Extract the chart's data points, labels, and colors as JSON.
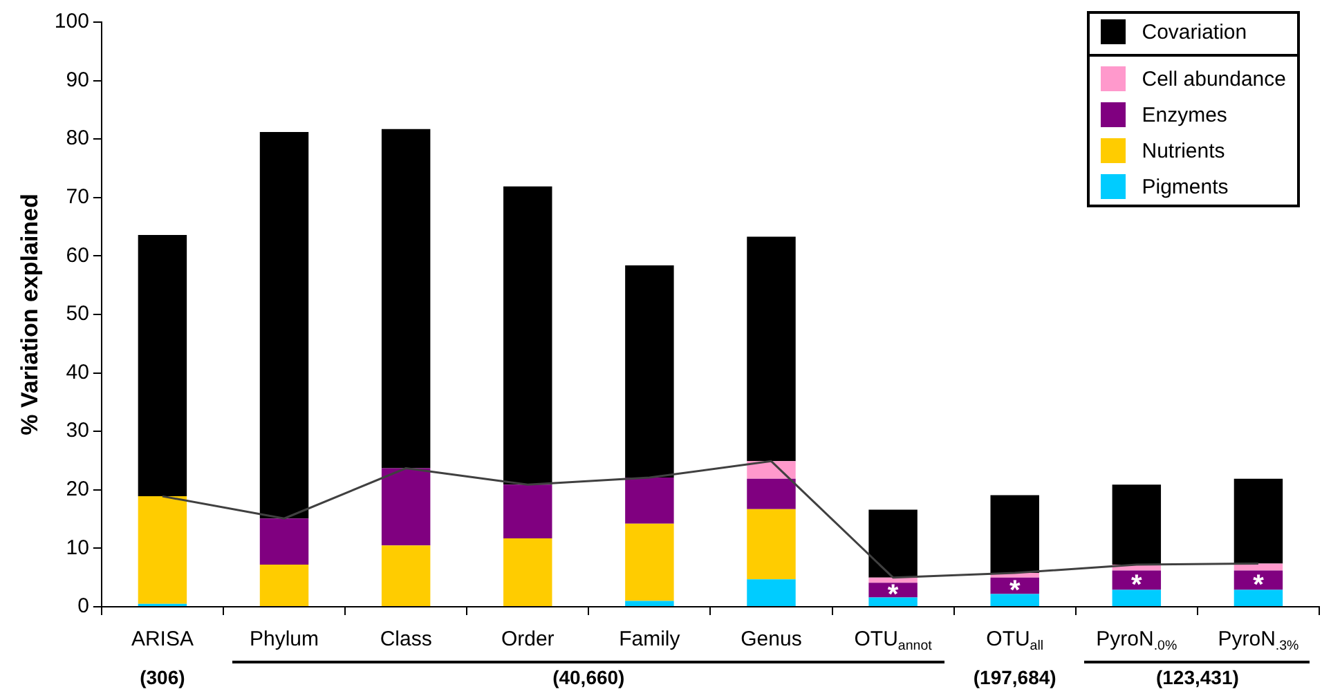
{
  "chart_data": {
    "type": "bar",
    "stacked": true,
    "ylabel": "% Variation explained",
    "categories": [
      "ARISA",
      "Phylum",
      "Class",
      "Order",
      "Family",
      "Genus",
      "OTU$_{annot}$",
      "OTU$_{all}$",
      "PyroN$_{.0%}$",
      "PyroN$_{.3%}$"
    ],
    "series": [
      {
        "name": "Pigments",
        "color": "#00ccff",
        "values": [
          0.5,
          0,
          0,
          0,
          1.0,
          4.7,
          1.6,
          2.2,
          2.9,
          2.9
        ]
      },
      {
        "name": "Nutrients",
        "color": "#ffcc00",
        "values": [
          18.4,
          7.2,
          10.5,
          11.7,
          13.2,
          12.0,
          0,
          0,
          0,
          0
        ]
      },
      {
        "name": "Enzymes",
        "color": "#800080",
        "values": [
          0,
          7.9,
          13.2,
          9.2,
          7.9,
          5.2,
          2.5,
          2.8,
          3.3,
          3.3
        ]
      },
      {
        "name": "Cell abundance",
        "color": "#ff99cc",
        "values": [
          0,
          0,
          0,
          0,
          0,
          3.0,
          0.9,
          0.8,
          1.0,
          1.2
        ]
      },
      {
        "name": "Covariation",
        "color": "#000000",
        "values": [
          44.7,
          66.1,
          58.0,
          51.0,
          36.3,
          38.4,
          11.6,
          13.3,
          13.7,
          14.5
        ]
      },
      {
        "type": "line",
        "color": "#404040",
        "values": [
          18.9,
          15.1,
          23.7,
          20.9,
          22.1,
          24.9,
          5.0,
          5.8,
          7.2,
          7.4
        ]
      }
    ],
    "ylim": [
      0,
      100
    ],
    "yticks": [
      0,
      10,
      20,
      30,
      40,
      50,
      60,
      70,
      80,
      90,
      100
    ],
    "grid": false,
    "legend": "top right",
    "marker": "none",
    "annotations": [
      "(306)",
      "(40,660)",
      "(197,684)",
      "(123,431)",
      "*",
      "*",
      "*",
      "*"
    ]
  }
}
